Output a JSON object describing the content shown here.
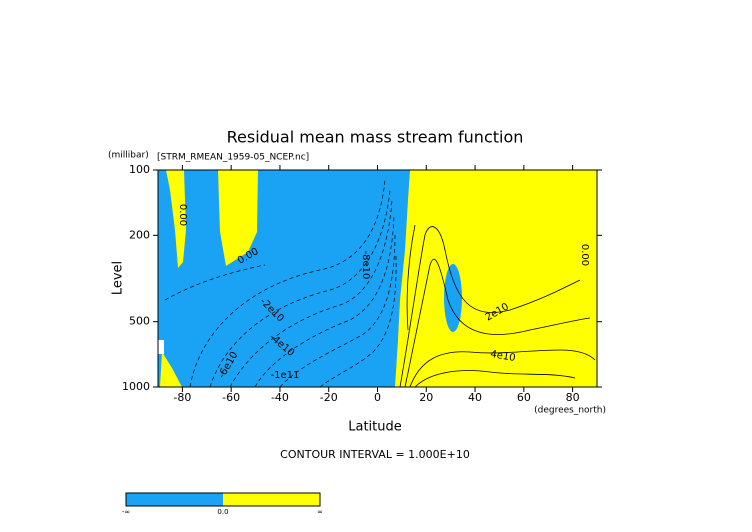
{
  "chart_data": {
    "type": "contour",
    "title": "Residual mean mass stream function",
    "subtitle": "[STRM_RMEAN_1959-05_NCEP.nc]",
    "x_label": "Latitude",
    "x_units": "(degrees_north)",
    "y_label": "Level",
    "y_units": "(millibar)",
    "xlim": [
      -90,
      90
    ],
    "ylim": [
      1000,
      100
    ],
    "log_y": true,
    "xticks": [
      -80,
      -60,
      -40,
      -20,
      0,
      20,
      40,
      60,
      80
    ],
    "yticks": [
      100,
      200,
      500,
      1000
    ],
    "note": "CONTOUR INTERVAL = 1.000E+10",
    "contour_labels": [
      "0.00",
      "0.00",
      "-2e10",
      "-4e10",
      "-6e10",
      "-1e11",
      "-8e10",
      "2e10",
      "4e10",
      "0.00"
    ],
    "colorbar": {
      "colors": [
        "#1aa3f5",
        "#ffff00"
      ],
      "labels": [
        "-∞",
        "0.0",
        "∞"
      ]
    }
  }
}
